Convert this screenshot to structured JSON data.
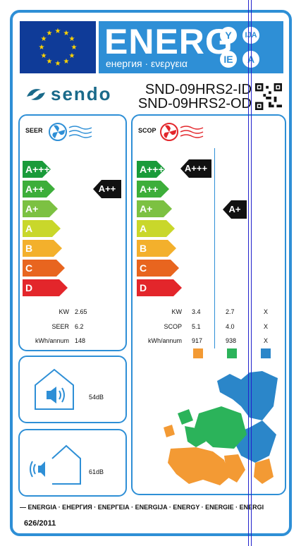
{
  "header": {
    "energy_word": "ENERG",
    "energy_sub": "енергия · ενεργεια",
    "lang_badges": [
      "Y",
      "IJA",
      "IE",
      "A"
    ]
  },
  "brand": {
    "name": "sendo",
    "icon": "sendo-logo-icon"
  },
  "models": {
    "indoor": "SND-09HRS2-ID",
    "outdoor": "SND-09HRS2-OD"
  },
  "seer": {
    "title": "SEER",
    "classes": [
      "A+++",
      "A++",
      "A+",
      "A",
      "B",
      "C",
      "D"
    ],
    "rating": "A++",
    "rows": [
      {
        "label": "KW",
        "value": "2.65"
      },
      {
        "label": "SEER",
        "value": "6.2"
      },
      {
        "label": "kWh/annum",
        "value": "148"
      }
    ]
  },
  "scop": {
    "title": "SCOP",
    "classes": [
      "A+++",
      "A++",
      "A+",
      "A",
      "B",
      "C",
      "D"
    ],
    "rating_top": "A+++",
    "rating_mid": "A+",
    "rows": [
      {
        "label": "KW",
        "v1": "3.4",
        "v2": "2.7",
        "v3": "X"
      },
      {
        "label": "SCOP",
        "v1": "5.1",
        "v2": "4.0",
        "v3": "X"
      },
      {
        "label": "kWh/annum",
        "v1": "917",
        "v2": "938",
        "v3": "X"
      }
    ]
  },
  "noise": {
    "indoor": "54dB",
    "outdoor": "61dB"
  },
  "footer": {
    "energy_line": "ENERGIA · ЕНЕРГИЯ · ΕΝΕΡΓΕΙΑ · ENERGIJA · ENERGY · ENERGIE · ENERGI",
    "regulation": "626/2011"
  },
  "colors": {
    "blue": "#2e8fd6",
    "eu_blue": "#0f3b98",
    "class_colors": [
      "#1a9b3a",
      "#3dae3a",
      "#7cc142",
      "#c9d72b",
      "#f3b02c",
      "#e8651f",
      "#e3262b"
    ],
    "zone_orange": "#f39a34",
    "zone_green": "#2bb35a",
    "zone_blue": "#2b86c9"
  }
}
